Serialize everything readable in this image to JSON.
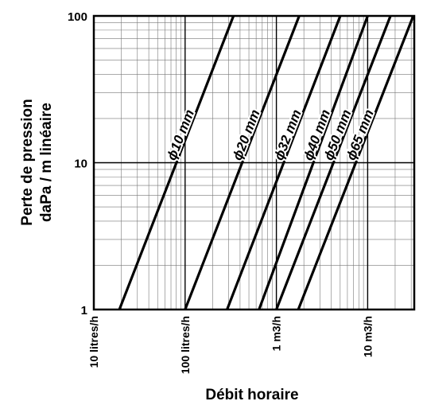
{
  "chart_data": {
    "type": "line",
    "x_scale": "log",
    "y_scale": "log",
    "grid": true,
    "xlabel": "Débit horaire",
    "ylabel_line1": "Perte de pression",
    "ylabel_line2": "daPa / m linéaire",
    "ylim": [
      1,
      100
    ],
    "x_ticks": [
      {
        "label": "10 litres/h"
      },
      {
        "label": "100 litres/h"
      },
      {
        "label": "1 m3/h"
      },
      {
        "label": "10 m3/h"
      }
    ],
    "y_ticks": [
      {
        "value": 1,
        "label": "1"
      },
      {
        "value": 10,
        "label": "10"
      },
      {
        "value": 100,
        "label": "100"
      }
    ],
    "series": [
      {
        "name": "ϕ10 mm",
        "x_decades": [
          0.28,
          1.53
        ],
        "y": [
          1,
          100
        ]
      },
      {
        "name": "ϕ20 mm",
        "x_decades": [
          1.0,
          2.25
        ],
        "y": [
          1,
          100
        ]
      },
      {
        "name": "ϕ32 mm",
        "x_decades": [
          1.46,
          2.7
        ],
        "y": [
          1,
          100
        ]
      },
      {
        "name": "ϕ40 mm",
        "x_decades": [
          1.81,
          3.0
        ],
        "y": [
          1,
          100
        ]
      },
      {
        "name": "ϕ50 mm",
        "x_decades": [
          2.0,
          3.25
        ],
        "y": [
          1,
          100
        ]
      },
      {
        "name": "ϕ65 mm",
        "x_decades": [
          2.24,
          3.5
        ],
        "y": [
          1,
          100
        ]
      }
    ]
  }
}
